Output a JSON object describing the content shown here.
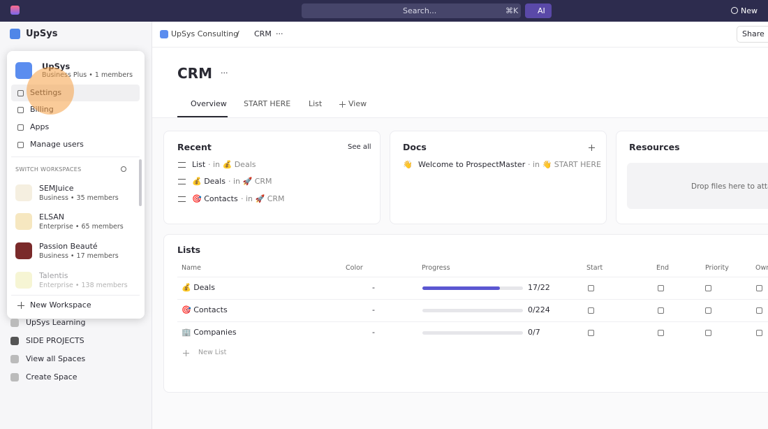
{
  "topbar": {
    "search": "Search...",
    "shortcut": "⌘K",
    "ai": "AI",
    "new": "New"
  },
  "sidebar": {
    "workspace": "UpSys",
    "spaces": [
      "UpSys Learning",
      "SIDE PROJECTS",
      "View all Spaces",
      "Create Space"
    ]
  },
  "menu": {
    "workspace": {
      "name": "UpSys",
      "plan": "Business Plus • 1 members"
    },
    "actions": [
      "Settings",
      "Billing",
      "Apps",
      "Manage users"
    ],
    "switch_title": "SWITCH WORKSPACES",
    "workspaces": [
      {
        "name": "SEMJuice",
        "plan": "Business • 35 members"
      },
      {
        "name": "ELSAN",
        "plan": "Enterprise • 65 members"
      },
      {
        "name": "Passion Beauté",
        "plan": "Business • 17 members"
      },
      {
        "name": "Talentis",
        "plan": "Enterprise • 138 members"
      }
    ],
    "new_workspace": "New Workspace"
  },
  "breadcrumb": {
    "items": [
      "UpSys Consulting",
      "CRM"
    ],
    "separator": "/",
    "more": "···"
  },
  "share": "Share",
  "page": {
    "title": "CRM",
    "more": "···",
    "tabs": [
      "Overview",
      "START HERE",
      "List",
      "View"
    ]
  },
  "recent": {
    "title": "Recent",
    "see_all": "See all",
    "items": [
      {
        "name": "List",
        "location": "· in 💰 Deals"
      },
      {
        "name": "💰 Deals",
        "location": "· in 🚀 CRM"
      },
      {
        "name": "🎯 Contacts",
        "location": "· in 🚀 CRM"
      }
    ]
  },
  "docs": {
    "title": "Docs",
    "items": [
      {
        "icon": "👋",
        "name": "Welcome to ProspectMaster",
        "location": "· in 👋 START HERE"
      }
    ]
  },
  "resources": {
    "title": "Resources",
    "drop": "Drop files here to attach"
  },
  "lists": {
    "title": "Lists",
    "columns": [
      "Name",
      "Color",
      "Progress",
      "Start",
      "End",
      "Priority",
      "Owner"
    ],
    "rows": [
      {
        "name": "💰 Deals",
        "color": "-",
        "progress": "17/22"
      },
      {
        "name": "🎯 Contacts",
        "color": "-",
        "progress": "0/224"
      },
      {
        "name": "🏢 Companies",
        "color": "-",
        "progress": "0/7"
      }
    ],
    "new_list": "New List"
  }
}
